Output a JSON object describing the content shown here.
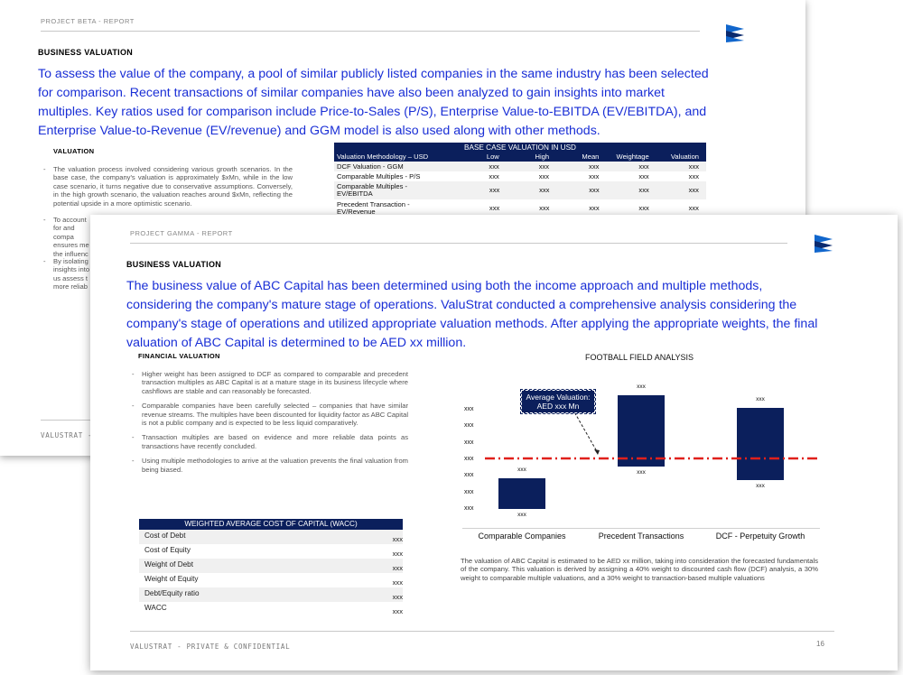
{
  "back": {
    "header": "PROJECT BETA - REPORT",
    "section_title": "BUSINESS VALUATION",
    "lead": "To assess the value of the company, a pool of similar publicly listed companies in the same industry has been selected for comparison. Recent transactions of similar companies have also been analyzed to gain insights into market multiples. Key ratios used for comparison include Price-to-Sales (P/S), Enterprise Value-to-EBITDA (EV/EBITDA), and Enterprise Value-to-Revenue (EV/revenue) and GGM model is also used along with other methods.",
    "valuation_title": "VALUATION",
    "bullets": [
      "The valuation process involved considering various growth scenarios. In the base case, the company's valuation is approximately $xMn, while in the low case scenario, it turns negative due to conservative assumptions. Conversely, in the high growth scenario, the valuation reaches around $xMn, reflecting the potential upside in a more optimistic scenario.",
      "To account for and compa ensures me the influenc",
      "By isolating insights into us assess t more reliab"
    ],
    "table": {
      "title": "BASE CASE VALUATION IN USD",
      "columns": [
        "Valuation Methodology – USD",
        "Low",
        "High",
        "Mean",
        "Weightage",
        "Valuation"
      ],
      "rows": [
        [
          "DCF Valuation - GGM",
          "xxx",
          "xxx",
          "xxx",
          "xxx",
          "xxx"
        ],
        [
          "Comparable Multiples - P/S",
          "xxx",
          "xxx",
          "xxx",
          "xxx",
          "xxx"
        ],
        [
          "Comparable Multiples - EV/EBITDA",
          "xxx",
          "xxx",
          "xxx",
          "xxx",
          "xxx"
        ],
        [
          "Precedent Transaction - EV/Revenue",
          "xxx",
          "xxx",
          "xxx",
          "xxx",
          "xxx"
        ]
      ]
    },
    "footer": "VALUSTRAT -"
  },
  "front": {
    "header": "PROJECT GAMMA - REPORT",
    "section_title": "BUSINESS VALUATION",
    "lead": "The business value of ABC Capital has been determined using both the income approach and multiple methods, considering the company's mature stage of operations. ValuStrat conducted a comprehensive analysis considering the company's stage of operations and utilized appropriate valuation methods. After applying the appropriate weights, the final valuation of ABC Capital is determined to be AED xx million.",
    "fin_title": "FINANCIAL VALUATION",
    "bullets": [
      "Higher weight has been assigned to DCF as compared to comparable and precedent transaction multiples as ABC Capital is at a mature stage in its business lifecycle where cashflows are stable and can reasonably be forecasted.",
      "Comparable companies have been carefully selected – companies that have similar revenue streams. The multiples have been discounted for liquidity factor as ABC Capital is not a public company and is expected to be less liquid comparatively.",
      "Transaction multiples are based on evidence and more reliable data points as transactions have recently concluded.",
      "Using multiple methodologies to arrive at the valuation prevents the final valuation from being biased."
    ],
    "wacc": {
      "title": "WEIGHTED AVERAGE COST OF CAPITAL (WACC)",
      "rows": [
        {
          "label": "Cost of Debt",
          "value": "xxx"
        },
        {
          "label": "Cost of Equity",
          "value": "xxx"
        },
        {
          "label": "Weight of Debt",
          "value": "xxx"
        },
        {
          "label": "Weight of Equity",
          "value": "xxx"
        },
        {
          "label": "Debt/Equity ratio",
          "value": "xxx"
        },
        {
          "label": "WACC",
          "value": "xxx"
        }
      ]
    },
    "caption": "The valuation of ABC Capital is estimated to be AED xx million, taking into consideration the forecasted fundamentals of the company. This valuation is derived by assigning a 40% weight to discounted cash flow (DCF) analysis, a 30% weight to comparable multiple valuations, and a 30% weight to transaction-based multiple valuations",
    "footer": "VALUSTRAT - PRIVATE & CONFIDENTIAL",
    "page_number": "16"
  },
  "chart_data": {
    "type": "bar",
    "subtype": "floating-range",
    "title": "FOOTBALL FIELD ANALYSIS",
    "categories": [
      "Comparable Companies",
      "Precedent Transactions",
      "DCF - Perpetuity Growth"
    ],
    "ranges": [
      [
        1.0,
        2.6
      ],
      [
        3.2,
        6.95
      ],
      [
        2.5,
        6.3
      ]
    ],
    "low_labels": [
      "xxx",
      "xxx",
      "xxx"
    ],
    "high_labels": [
      "xxx",
      "xxx",
      "xxx"
    ],
    "y_tick_labels": [
      "xxx",
      "xxx",
      "xxx",
      "xxx",
      "xxx",
      "xxx",
      "xxx"
    ],
    "ylim": [
      0,
      8
    ],
    "reference_line": {
      "value": 3.65,
      "label": "Average Valuation: AED xxx Mn",
      "color": "#e0201b"
    },
    "colors": {
      "bar": "#0b1f5c",
      "reference": "#e0201b"
    }
  }
}
